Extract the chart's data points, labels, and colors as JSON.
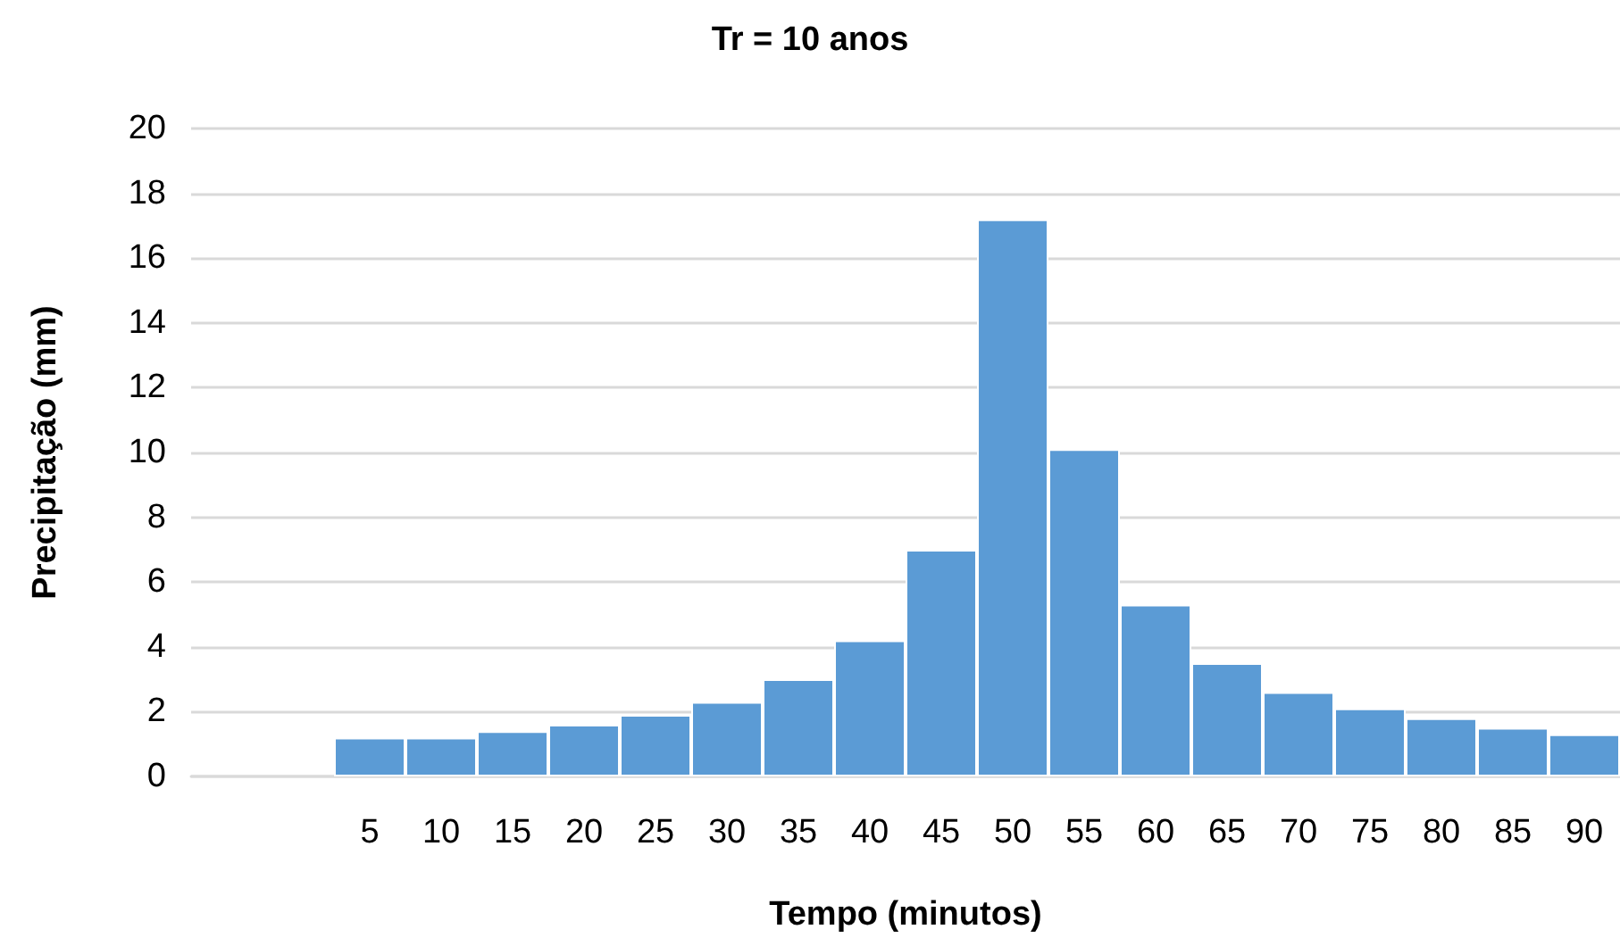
{
  "chart_data": {
    "type": "bar",
    "title": "Tr = 10 anos",
    "xlabel": "Tempo (minutos)",
    "ylabel": "Precipitação (mm)",
    "categories": [
      null,
      null,
      "5",
      "10",
      "15",
      "20",
      "25",
      "30",
      "35",
      "40",
      "45",
      "50",
      "55",
      "60",
      "65",
      "70",
      "75",
      "80",
      "85",
      "90"
    ],
    "values": [
      null,
      null,
      1.2,
      1.2,
      1.4,
      1.6,
      1.9,
      2.3,
      3.0,
      4.2,
      7.0,
      17.2,
      10.1,
      5.3,
      3.5,
      2.6,
      2.1,
      1.8,
      1.5,
      1.3
    ],
    "color": "#5b9bd5",
    "ylim": [
      0,
      20
    ],
    "yticks": [
      0,
      2,
      4,
      6,
      8,
      10,
      12,
      14,
      16,
      18,
      20
    ],
    "grid": "y"
  }
}
